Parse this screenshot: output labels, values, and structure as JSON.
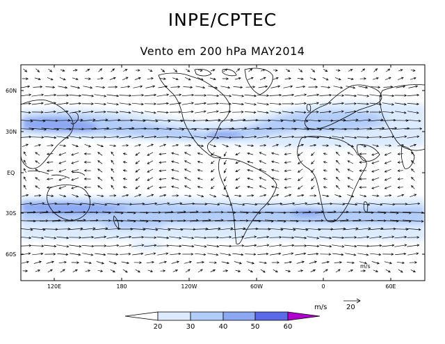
{
  "header": {
    "title": "INPE/CPTEC",
    "subtitle": "Vento em 200 hPa MAY2014"
  },
  "map": {
    "lat_labels": [
      "60N",
      "30N",
      "EQ",
      "30S",
      "60S"
    ],
    "lon_labels": [
      "120E",
      "180",
      "120W",
      "60W",
      "0",
      "60E"
    ],
    "vector_unit_inside": "m/s",
    "colors": {
      "land_line": "#000000",
      "frame": "#000000",
      "vector": "#000000"
    }
  },
  "legend": {
    "unit": "m/s",
    "reference_value": "20",
    "ticks": [
      "20",
      "30",
      "40",
      "50",
      "60"
    ],
    "colors": [
      "#ffffff",
      "#dcebff",
      "#b3cdfa",
      "#8ca8f2",
      "#5b68e8",
      "#b000d0"
    ]
  }
}
